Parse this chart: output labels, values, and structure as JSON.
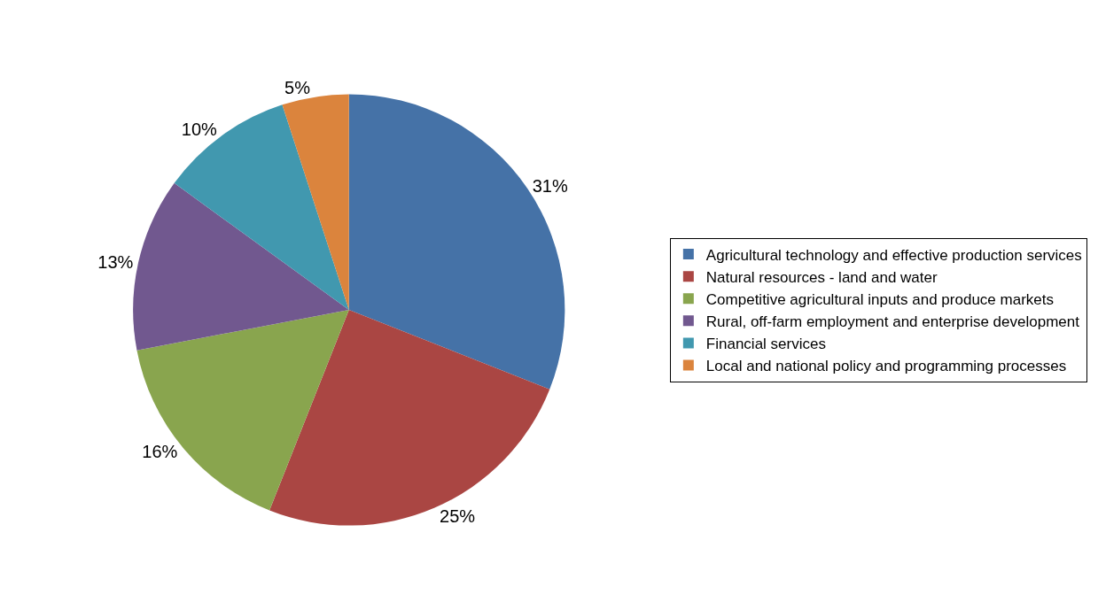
{
  "chart_data": {
    "type": "pie",
    "categories": [
      "Agricultural technology and effective production services",
      "Natural resources - land and water",
      "Competitive agricultural inputs and produce markets",
      "Rural, off-farm employment and enterprise development",
      "Financial services",
      "Local and national policy and programming processes"
    ],
    "values": [
      31,
      25,
      16,
      13,
      10,
      5
    ],
    "value_labels": [
      "31%",
      "25%",
      "16%",
      "13%",
      "10%",
      "5%"
    ],
    "colors": [
      "#4572a7",
      "#aa4643",
      "#89a54e",
      "#71588f",
      "#4198af",
      "#db843d"
    ],
    "legend": "right"
  }
}
